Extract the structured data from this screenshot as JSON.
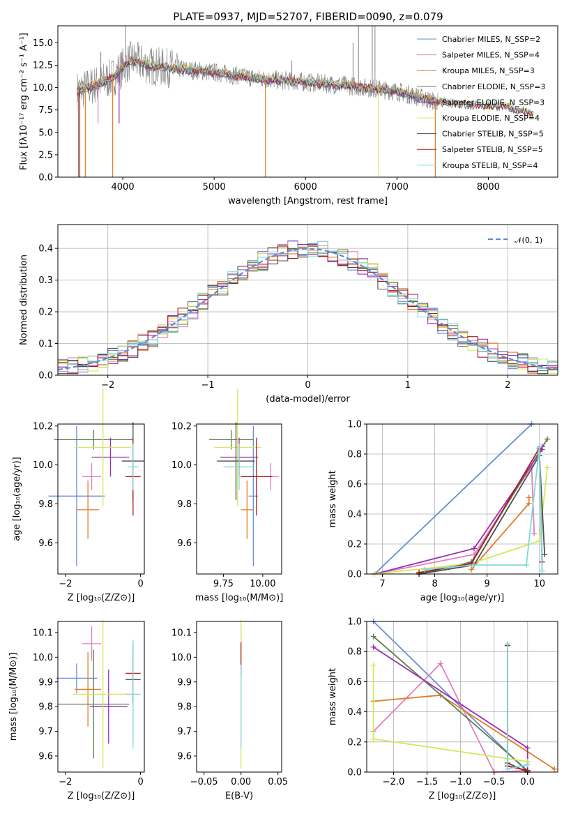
{
  "colors": {
    "Chabrier MILES": "#6a8bd4",
    "Salpeter MILES": "#e07fc0",
    "Kroupa MILES": "#e07b24",
    "Chabrier ELODIE": "#5e7f55",
    "Salpeter ELODIE": "#9a2db3",
    "Kroupa ELODIE": "#d4e85a",
    "Chabrier STELIB": "#4d4d4d",
    "Salpeter STELIB": "#a81d1d",
    "Kroupa STELIB": "#7fd8dc",
    "data": "#808080",
    "normal": "#5b8ad6",
    "grid": "#b0b0b0"
  },
  "chart_data": [
    {
      "id": "spectrum",
      "type": "line",
      "title": "PLATE=0937, MJD=52707, FIBERID=0090, z=0.079",
      "xlabel": "wavelength [Angstrom, rest frame]",
      "ylabel": "Flux [fλ10⁻¹⁷ erg cm⁻² s⁻¹ A⁻¹]",
      "xlim": [
        3290,
        8760
      ],
      "ylim": [
        0,
        16.9
      ],
      "xticks": [
        4000,
        5000,
        6000,
        7000,
        8000
      ],
      "yticks": [
        0.0,
        2.5,
        5.0,
        7.5,
        10.0,
        12.5,
        15.0
      ],
      "ytick_labels": [
        "0.0",
        "2.5",
        "5.0",
        "7.5",
        "10.0",
        "12.5",
        "15.0"
      ],
      "grid": false,
      "legend": [
        "Chabrier MILES, N_SSP=2",
        "Salpeter MILES, N_SSP=4",
        "Kroupa MILES, N_SSP=3",
        "Chabrier ELODIE, N_SSP=3",
        "Salpeter ELODIE, N_SSP=3",
        "Kroupa ELODIE, N_SSP=4",
        "Chabrier STELIB, N_SSP=5",
        "Salpeter STELIB, N_SSP=5",
        "Kroupa STELIB, N_SSP=4"
      ],
      "legend_placement": "upper-right",
      "continuum": {
        "x": [
          3500,
          3700,
          3900,
          4000,
          4100,
          4300,
          4500,
          5000,
          5500,
          6000,
          6500,
          7000,
          7400,
          7800,
          8200,
          8500
        ],
        "y": [
          9.6,
          10.3,
          11.2,
          12.3,
          13.1,
          12.4,
          12.2,
          11.7,
          11.0,
          10.6,
          10.2,
          9.6,
          8.5,
          8.1,
          7.9,
          7.0
        ]
      },
      "data_spikes": [
        [
          3515,
          0
        ],
        [
          3760,
          14
        ],
        [
          4030,
          17
        ],
        [
          4860,
          12
        ],
        [
          5200,
          11
        ],
        [
          5850,
          13
        ],
        [
          6520,
          15
        ],
        [
          6580,
          17
        ],
        [
          6730,
          17
        ],
        [
          6760,
          17
        ]
      ],
      "model_dips": [
        [
          3530,
          0
        ],
        [
          3590,
          0
        ],
        [
          3730,
          6
        ],
        [
          3890,
          0
        ],
        [
          3960,
          6
        ],
        [
          5560,
          0
        ],
        [
          6800,
          0
        ],
        [
          7420,
          0
        ]
      ]
    },
    {
      "id": "residuals",
      "type": "histogram",
      "xlabel": "(data-model)/error",
      "ylabel": "Normed distribution",
      "xlim": [
        -2.5,
        2.5
      ],
      "ylim": [
        0,
        0.475
      ],
      "xticks": [
        -2,
        -1,
        0,
        1,
        2
      ],
      "yticks": [
        0.0,
        0.1,
        0.2,
        0.3,
        0.4
      ],
      "grid": true,
      "legend": [
        "𝒩(0, 1)"
      ],
      "legend_placement": "upper-right",
      "bin_width": 0.1
    },
    {
      "id": "age-vs-Z",
      "type": "errorbar",
      "xlabel": "Z [log₁₀(Z/Z⊙)]",
      "ylabel": "age  [log₁₀(age/yr)]",
      "xlim": [
        -2.2,
        0.1
      ],
      "ylim": [
        9.44,
        10.21
      ],
      "xticks": [
        -2,
        0
      ],
      "yticks": [
        9.6,
        9.8,
        10.0,
        10.2
      ],
      "grid": false,
      "points": [
        {
          "series": "Chabrier MILES",
          "x": -1.7,
          "xerr": 0.75,
          "y": 9.84,
          "yerr": 0.36
        },
        {
          "series": "Salpeter MILES",
          "x": -1.3,
          "xerr": 0.25,
          "y": 9.94,
          "yerr": 0.07
        },
        {
          "series": "Kroupa MILES",
          "x": -1.4,
          "xerr": 0.3,
          "y": 9.77,
          "yerr": 0.15
        },
        {
          "series": "Chabrier ELODIE",
          "x": -1.25,
          "xerr": 1.05,
          "y": 10.13,
          "yerr": 0.05
        },
        {
          "series": "Salpeter ELODIE",
          "x": -0.8,
          "xerr": 0.5,
          "y": 10.04,
          "yerr": 0.1
        },
        {
          "series": "Kroupa ELODIE",
          "x": -1.0,
          "xerr": 0.75,
          "y": 10.09,
          "yerr": 0.3
        },
        {
          "series": "Chabrier STELIB",
          "x": -0.2,
          "xerr": 0.3,
          "y": 10.02,
          "yerr": 0.2
        },
        {
          "series": "Salpeter STELIB",
          "x": -0.2,
          "xerr": 0.2,
          "y": 9.94,
          "yerr": 0.2
        },
        {
          "series": "Kroupa STELIB",
          "x": -0.2,
          "xerr": 0.15,
          "y": 9.99,
          "yerr": 0.12
        }
      ]
    },
    {
      "id": "age-vs-mass",
      "type": "errorbar",
      "xlabel": "mass [log₁₀(M/M⊙)]",
      "ylabel": "",
      "xlim": [
        9.58,
        10.12
      ],
      "ylim": [
        9.44,
        10.21
      ],
      "xticks": [
        9.75,
        10.0
      ],
      "xtick_labels": [
        "9.75",
        "10.00"
      ],
      "yticks": [
        9.6,
        9.8,
        10.0,
        10.2
      ],
      "grid": false,
      "points": [
        {
          "series": "Chabrier MILES",
          "x": 9.94,
          "xerr": 0.03,
          "y": 9.84,
          "yerr": 0.36
        },
        {
          "series": "Salpeter MILES",
          "x": 10.05,
          "xerr": 0.05,
          "y": 9.94,
          "yerr": 0.07
        },
        {
          "series": "Kroupa MILES",
          "x": 9.9,
          "xerr": 0.04,
          "y": 9.77,
          "yerr": 0.15
        },
        {
          "series": "Chabrier ELODIE",
          "x": 9.8,
          "xerr": 0.14,
          "y": 10.13,
          "yerr": 0.05
        },
        {
          "series": "Salpeter ELODIE",
          "x": 9.85,
          "xerr": 0.12,
          "y": 10.04,
          "yerr": 0.1
        },
        {
          "series": "Kroupa ELODIE",
          "x": 9.84,
          "xerr": 0.15,
          "y": 10.09,
          "yerr": 0.3
        },
        {
          "series": "Chabrier STELIB",
          "x": 9.83,
          "xerr": 0.12,
          "y": 10.02,
          "yerr": 0.2
        },
        {
          "series": "Salpeter STELIB",
          "x": 9.96,
          "xerr": 0.1,
          "y": 9.94,
          "yerr": 0.2
        },
        {
          "series": "Kroupa STELIB",
          "x": 9.85,
          "xerr": 0.1,
          "y": 9.99,
          "yerr": 0.12
        }
      ]
    },
    {
      "id": "weight-vs-age",
      "type": "line",
      "xlabel": "age  [log₁₀(age/yr)]",
      "ylabel": "mass weight",
      "xlim": [
        6.7,
        10.35
      ],
      "ylim": [
        0,
        1
      ],
      "xticks": [
        7,
        8,
        9,
        10
      ],
      "yticks": [
        0.0,
        0.2,
        0.4,
        0.6,
        0.8,
        1.0
      ],
      "grid": true,
      "series": [
        {
          "series": "Chabrier MILES",
          "points": [
            [
              6.85,
              0.0
            ],
            [
              9.85,
              1.0
            ]
          ]
        },
        {
          "series": "Salpeter MILES",
          "points": [
            [
              6.85,
              0.0
            ],
            [
              8.75,
              0.13
            ],
            [
              9.85,
              0.72
            ],
            [
              9.9,
              0.27
            ]
          ]
        },
        {
          "series": "Kroupa MILES",
          "points": [
            [
              8.7,
              0.03
            ],
            [
              9.8,
              0.47
            ],
            [
              9.8,
              0.51
            ]
          ]
        },
        {
          "series": "Chabrier ELODIE",
          "points": [
            [
              7.7,
              0.0
            ],
            [
              8.7,
              0.08
            ],
            [
              10.15,
              0.9
            ]
          ]
        },
        {
          "series": "Salpeter ELODIE",
          "points": [
            [
              6.85,
              0.0
            ],
            [
              8.75,
              0.17
            ],
            [
              10.05,
              0.83
            ],
            [
              10.05,
              0.85
            ]
          ]
        },
        {
          "series": "Kroupa ELODIE",
          "points": [
            [
              6.85,
              0.0
            ],
            [
              8.7,
              0.07
            ],
            [
              10.0,
              0.22
            ],
            [
              10.15,
              0.71
            ]
          ]
        },
        {
          "series": "Chabrier STELIB",
          "points": [
            [
              7.7,
              0.0
            ],
            [
              8.75,
              0.06
            ],
            [
              10.0,
              0.79
            ],
            [
              10.1,
              0.13
            ]
          ]
        },
        {
          "series": "Salpeter STELIB",
          "points": [
            [
              7.7,
              0.01
            ],
            [
              8.7,
              0.07
            ],
            [
              10.0,
              0.84
            ],
            [
              10.05,
              0.08
            ]
          ]
        },
        {
          "series": "Kroupa STELIB",
          "points": [
            [
              7.8,
              0.03
            ],
            [
              8.75,
              0.06
            ],
            [
              9.75,
              0.06
            ],
            [
              10.0,
              0.85
            ],
            [
              10.05,
              0.02
            ]
          ]
        }
      ]
    },
    {
      "id": "mass-vs-Z",
      "type": "errorbar",
      "xlabel": "Z [log₁₀(Z/Z⊙)]",
      "ylabel": "mass [log₁₀(M/M⊙)]",
      "xlim": [
        -2.2,
        0.1
      ],
      "ylim": [
        9.535,
        10.145
      ],
      "xticks": [
        -2,
        0
      ],
      "yticks": [
        9.6,
        9.7,
        9.8,
        9.9,
        10.0,
        10.1
      ],
      "grid": false,
      "points": [
        {
          "series": "Chabrier MILES",
          "x": -1.7,
          "xerr": 0.55,
          "y": 9.915,
          "yerr": 0.06
        },
        {
          "series": "Salpeter MILES",
          "x": -1.3,
          "xerr": 0.25,
          "y": 10.055,
          "yerr": 0.07
        },
        {
          "series": "Kroupa MILES",
          "x": -1.4,
          "xerr": 0.35,
          "y": 9.87,
          "yerr": 0.15
        },
        {
          "series": "Chabrier ELODIE",
          "x": -1.25,
          "xerr": 0.95,
          "y": 9.81,
          "yerr": 0.22
        },
        {
          "series": "Salpeter ELODIE",
          "x": -0.85,
          "xerr": 0.5,
          "y": 9.8,
          "yerr": 0.15
        },
        {
          "series": "Kroupa ELODIE",
          "x": -1.0,
          "xerr": 0.8,
          "y": 9.85,
          "yerr": 0.3
        },
        {
          "series": "Chabrier STELIB",
          "x": -0.2,
          "xerr": 0.2,
          "y": 9.91,
          "yerr": 0.1
        },
        {
          "series": "Salpeter STELIB",
          "x": -0.2,
          "xerr": 0.2,
          "y": 9.935,
          "yerr": 0.12
        },
        {
          "series": "Kroupa STELIB",
          "x": -0.2,
          "xerr": 0.2,
          "y": 9.85,
          "yerr": 0.22
        }
      ]
    },
    {
      "id": "mass-vs-ebv",
      "type": "errorbar",
      "xlabel": "E(B-V)",
      "ylabel": "",
      "xlim": [
        -0.06,
        0.055
      ],
      "ylim": [
        9.535,
        10.145
      ],
      "xticks": [
        -0.05,
        0.0,
        0.05
      ],
      "xtick_labels": [
        "−0.05",
        "0.00",
        "0.05"
      ],
      "yticks": [
        9.6,
        9.7,
        9.8,
        9.9,
        10.0,
        10.1
      ],
      "grid": false,
      "points": [
        {
          "series": "Salpeter MILES",
          "x": 0.0,
          "xerr": 0,
          "y": 10.055,
          "yerr": 0.07
        },
        {
          "series": "Kroupa ELODIE",
          "x": 0.0,
          "xerr": 0,
          "y": 9.85,
          "yerr": 0.3
        },
        {
          "series": "Salpeter STELIB",
          "x": 0.0,
          "xerr": 0,
          "y": 9.99,
          "yerr": 0.07
        },
        {
          "series": "Kroupa STELIB",
          "x": 0.0,
          "xerr": 0,
          "y": 9.8,
          "yerr": 0.17
        }
      ]
    },
    {
      "id": "weight-vs-Z",
      "type": "line",
      "xlabel": "Z [log₁₀(Z/Z⊙)]",
      "ylabel": "mass weight",
      "xlim": [
        -2.4,
        0.45
      ],
      "ylim": [
        0,
        1
      ],
      "xticks": [
        -2.0,
        -1.5,
        -1.0,
        -0.5,
        0.0
      ],
      "xtick_labels": [
        "−2.0",
        "−1.5",
        "−1.0",
        "−0.5",
        "0.0"
      ],
      "yticks": [
        0.0,
        0.2,
        0.4,
        0.6,
        0.8,
        1.0
      ],
      "grid": true,
      "series": [
        {
          "series": "Chabrier MILES",
          "points": [
            [
              -2.3,
              1.0
            ],
            [
              0.0,
              0.0
            ]
          ]
        },
        {
          "series": "Salpeter MILES",
          "points": [
            [
              -2.3,
              0.27
            ],
            [
              -1.3,
              0.72
            ],
            [
              -0.5,
              0.0
            ],
            [
              0.0,
              0.01
            ]
          ]
        },
        {
          "series": "Kroupa MILES",
          "points": [
            [
              -2.3,
              0.47
            ],
            [
              -1.3,
              0.51
            ],
            [
              0.4,
              0.02
            ]
          ]
        },
        {
          "series": "Chabrier ELODIE",
          "points": [
            [
              -2.3,
              0.9
            ],
            [
              0.0,
              0.01
            ]
          ]
        },
        {
          "series": "Salpeter ELODIE",
          "points": [
            [
              -2.3,
              0.83
            ],
            [
              0.0,
              0.16
            ],
            [
              0.0,
              0.01
            ]
          ]
        },
        {
          "series": "Kroupa ELODIE",
          "points": [
            [
              -2.3,
              0.71
            ],
            [
              -2.3,
              0.22
            ],
            [
              0.0,
              0.07
            ]
          ]
        },
        {
          "series": "Chabrier STELIB",
          "points": [
            [
              -0.3,
              0.84
            ],
            [
              -0.3,
              0.06
            ],
            [
              0.0,
              0.0
            ]
          ]
        },
        {
          "series": "Salpeter STELIB",
          "points": [
            [
              -0.3,
              0.84
            ],
            [
              -0.3,
              0.04
            ],
            [
              0.0,
              0.01
            ]
          ]
        },
        {
          "series": "Kroupa STELIB",
          "points": [
            [
              -0.3,
              0.85
            ],
            [
              -0.3,
              0.02
            ],
            [
              0.0,
              0.05
            ]
          ]
        }
      ]
    }
  ]
}
